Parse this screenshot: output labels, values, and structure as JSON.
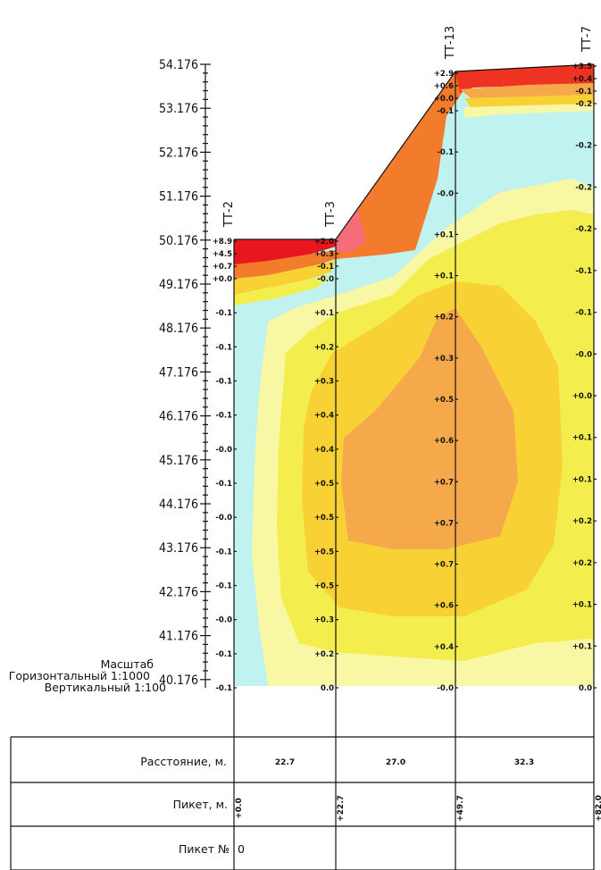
{
  "elevations": [
    "54.176",
    "53.176",
    "52.176",
    "51.176",
    "50.176",
    "49.176",
    "48.176",
    "47.176",
    "46.176",
    "45.176",
    "44.176",
    "43.176",
    "42.176",
    "41.176",
    "40.176"
  ],
  "scale": {
    "title": "Масштаб",
    "horizontal": "Горизонтальный 1:1000",
    "vertical": "Вертикальный 1:100"
  },
  "boreholes": [
    {
      "name": "ТТ-2",
      "values": [
        "+8.9",
        "+4.5",
        "+0.7",
        "+0.0",
        "-0.1",
        "-0.1",
        "-0.1",
        "-0.1",
        "-0.0",
        "-0.1",
        "-0.0",
        "-0.1",
        "-0.1",
        "-0.0",
        "-0.1",
        "-0.1"
      ]
    },
    {
      "name": "ТТ-3",
      "values": [
        "+2.0",
        "+0.3",
        "-0.1",
        "-0.0",
        "+0.1",
        "+0.2",
        "+0.3",
        "+0.4",
        "+0.4",
        "+0.5",
        "+0.5",
        "+0.5",
        "+0.5",
        "+0.3",
        "+0.2",
        "0.0"
      ]
    },
    {
      "name": "ТТ-13",
      "values": [
        "+2.9",
        "+0.6",
        "+0.0",
        "-0.1",
        "-0.1",
        "-0.0",
        "+0.1",
        "+0.1",
        "+0.2",
        "+0.3",
        "+0.5",
        "+0.6",
        "+0.7",
        "+0.7",
        "+0.7",
        "+0.6",
        "+0.4",
        "-0.0"
      ]
    },
    {
      "name": "ТТ-7",
      "values": [
        "+3.5",
        "+0.4",
        "-0.1",
        "-0.2",
        "-0.2",
        "-0.2",
        "-0.2",
        "-0.1",
        "-0.1",
        "-0.0",
        "+0.0",
        "+0.1",
        "+0.1",
        "+0.2",
        "+0.2",
        "+0.1",
        "+0.1",
        "0.0"
      ]
    }
  ],
  "table": {
    "distance_label": "Расстояние, м.",
    "distances": [
      "22.7",
      "27.0",
      "32.3"
    ],
    "picket_label": "Пикет, м.",
    "pickets": [
      "+0.0",
      "+22.7",
      "+49.7",
      "+82.0"
    ],
    "picket_no_label": "Пикет №",
    "picket_no": "0"
  },
  "colors": {
    "cyan": "#c0f2f0",
    "pale_yellow": "#f8f7a4",
    "yellow": "#f3ee4e",
    "gold": "#f8d235",
    "orange": "#f5a94a",
    "dark_orange": "#f27b2c",
    "red": "#ee3323",
    "deep_red": "#e8161d",
    "pink": "#f56d79"
  }
}
